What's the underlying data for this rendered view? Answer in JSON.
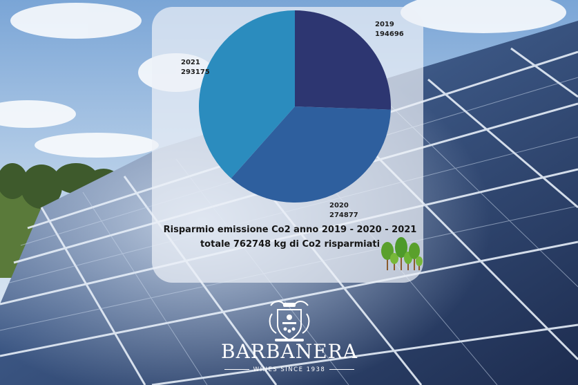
{
  "chart_data": {
    "type": "pie",
    "categories": [
      "2019",
      "2020",
      "2021"
    ],
    "values": [
      194696,
      274877,
      293175
    ],
    "colors": [
      "#2d3671",
      "#2e5f9e",
      "#2b8cbe"
    ],
    "title": "Risparmio emissione Co2 anno 2019 - 2020 - 2021",
    "subtitle": "totale 762748 kg di Co2 risparmiati"
  },
  "brand": {
    "name": "BARBANERA",
    "tagline": "WINES SINCE 1938"
  },
  "icons": {
    "trees": "trees-icon",
    "logo": "winery-crest-logo"
  }
}
